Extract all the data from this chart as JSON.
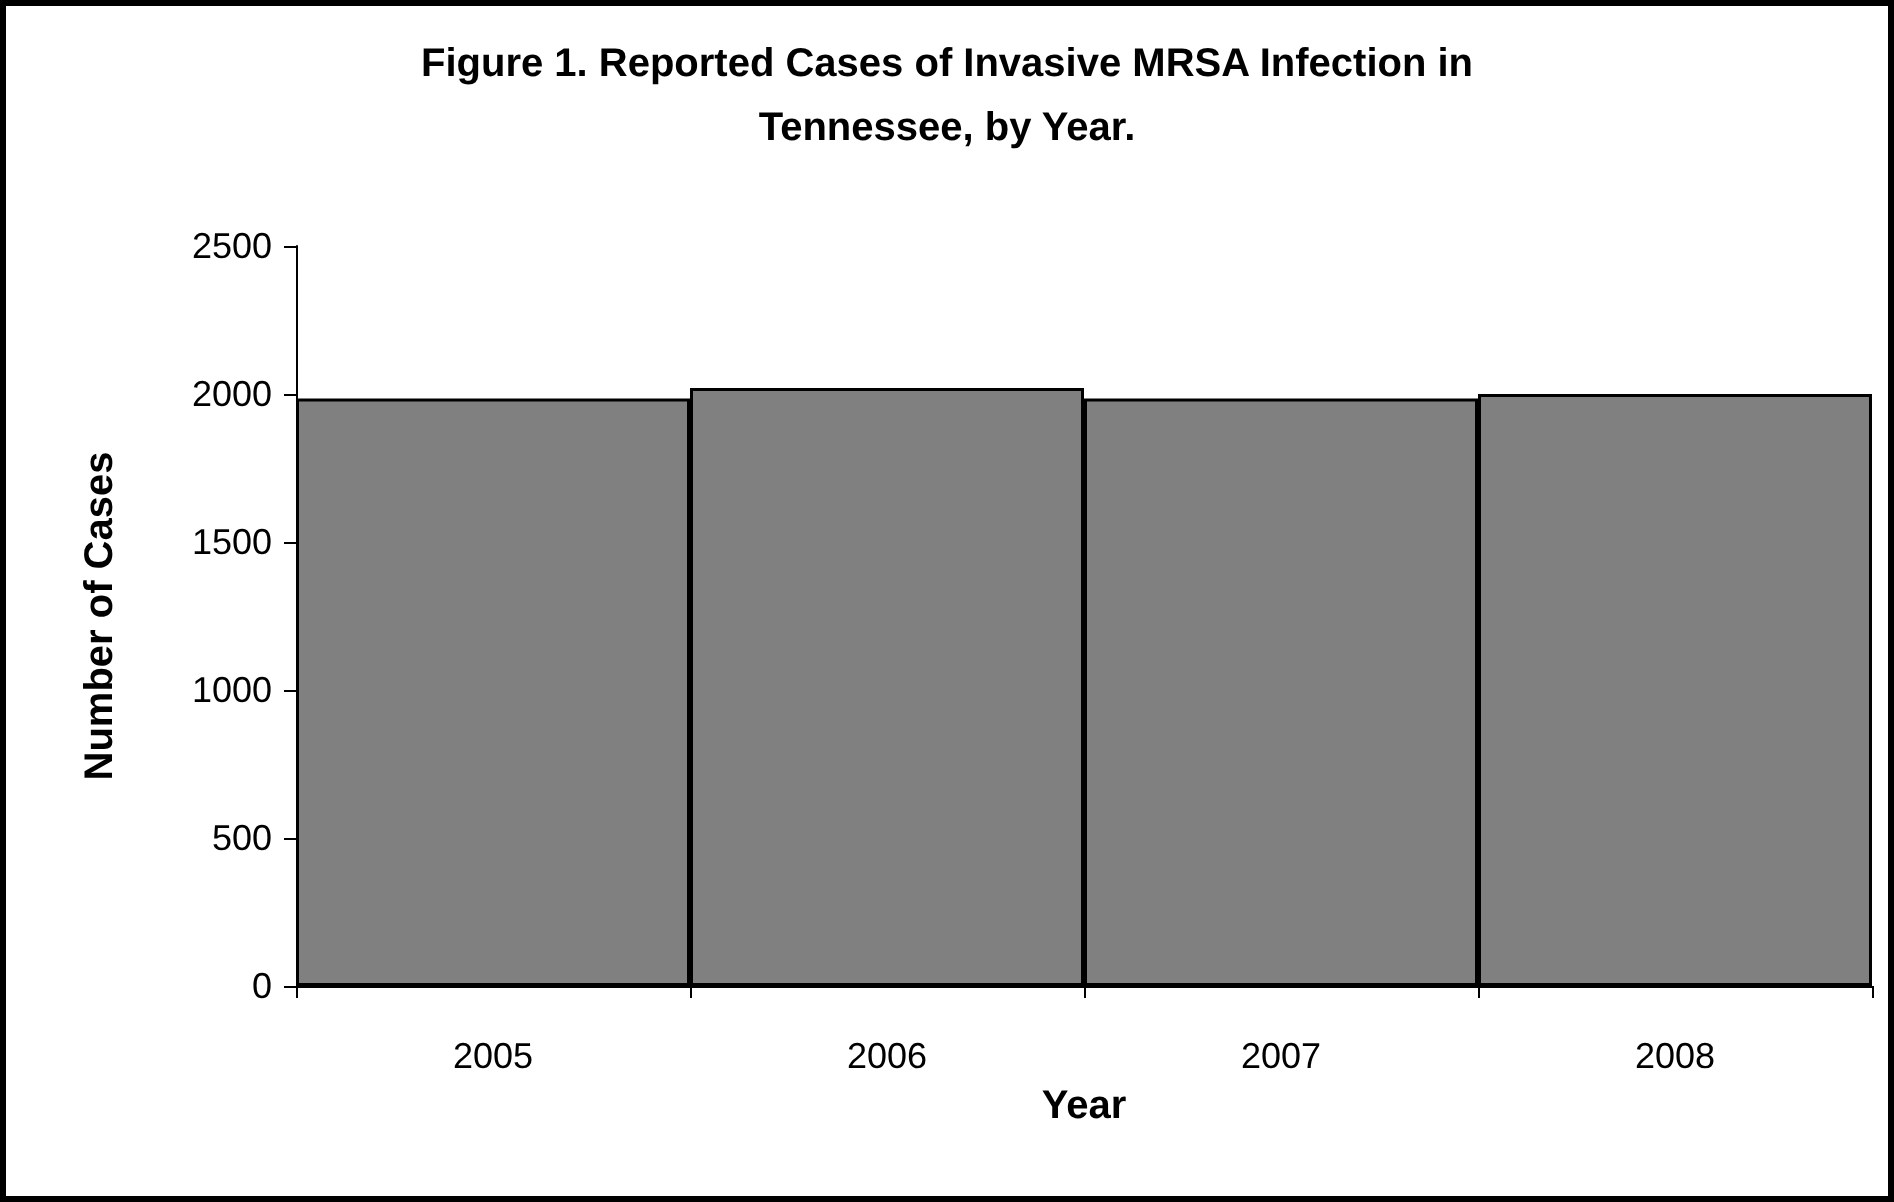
{
  "chart_data": {
    "type": "bar",
    "title": "Figure 1. Reported Cases of Invasive MRSA Infection in\nTennessee, by Year.",
    "xlabel": "Year",
    "ylabel": "Number of Cases",
    "categories": [
      "2005",
      "2006",
      "2007",
      "2008"
    ],
    "values": [
      1985,
      2020,
      1985,
      2000
    ],
    "color": "#808080",
    "ylim": [
      0,
      2500
    ],
    "yticks": [
      0,
      500,
      1000,
      1500,
      2000,
      2500
    ],
    "grid": false
  }
}
